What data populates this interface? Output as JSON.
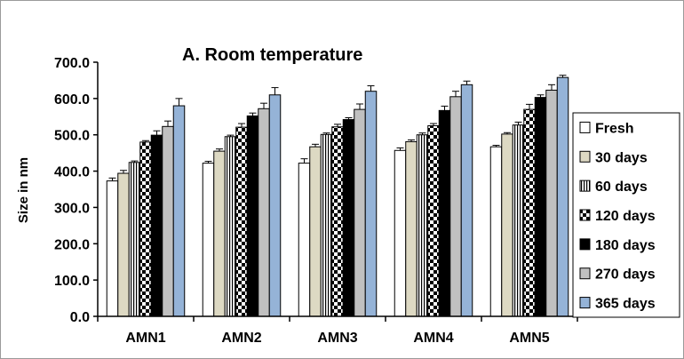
{
  "chart_data": {
    "type": "bar",
    "title": "A. Room temperature",
    "xlabel": "",
    "ylabel": "Size in nm",
    "ylim": [
      0,
      700
    ],
    "yticks": [
      "0.0",
      "100.0",
      "200.0",
      "300.0",
      "400.0",
      "500.0",
      "600.0",
      "700.0"
    ],
    "categories": [
      "AMN1",
      "AMN2",
      "AMN3",
      "AMN4",
      "AMN5"
    ],
    "legend_position": "right",
    "grid": false,
    "error_bars": true,
    "series": [
      {
        "name": "Fresh",
        "color": "#ffffff",
        "pattern": "solid",
        "values": [
          373,
          422,
          422,
          457,
          467
        ],
        "errors": [
          8,
          5,
          12,
          7,
          4
        ]
      },
      {
        "name": "30 days",
        "color": "#ddd9c3",
        "pattern": "solid",
        "values": [
          394,
          455,
          467,
          481,
          502
        ],
        "errors": [
          8,
          6,
          7,
          5,
          4
        ]
      },
      {
        "name": "60 days",
        "color": "#ffffff",
        "pattern": "vertical-stripes",
        "values": [
          424,
          495,
          501,
          500,
          527
        ],
        "errors": [
          4,
          4,
          4,
          5,
          8
        ]
      },
      {
        "name": "120 days",
        "color": "#ffffff",
        "pattern": "checker",
        "values": [
          480,
          521,
          522,
          525,
          570
        ],
        "errors": [
          4,
          10,
          7,
          6,
          14
        ]
      },
      {
        "name": "180 days",
        "color": "#000000",
        "pattern": "solid",
        "values": [
          499,
          552,
          542,
          567,
          603
        ],
        "errors": [
          12,
          8,
          5,
          12,
          7
        ]
      },
      {
        "name": "270 days",
        "color": "#c0c0c0",
        "pattern": "solid",
        "values": [
          523,
          572,
          570,
          605,
          623
        ],
        "errors": [
          15,
          15,
          15,
          15,
          15
        ]
      },
      {
        "name": "365 days",
        "color": "#95b3d7",
        "pattern": "solid",
        "values": [
          580,
          610,
          620,
          638,
          658
        ],
        "errors": [
          20,
          20,
          15,
          10,
          6
        ]
      }
    ]
  }
}
